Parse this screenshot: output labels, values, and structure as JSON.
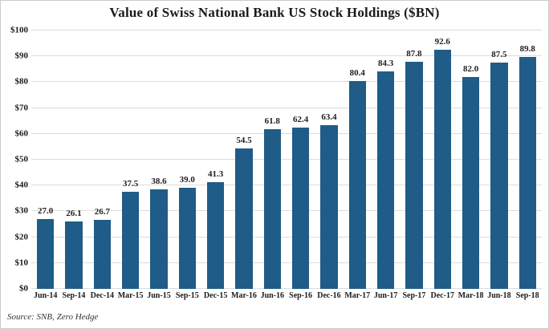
{
  "chart_data": {
    "type": "bar",
    "title": "Value of Swiss National Bank US Stock Holdings ($BN)",
    "categories": [
      "Jun-14",
      "Sep-14",
      "Dec-14",
      "Mar-15",
      "Jun-15",
      "Sep-15",
      "Dec-15",
      "Mar-16",
      "Jun-16",
      "Sep-16",
      "Dec-16",
      "Mar-17",
      "Jun-17",
      "Sep-17",
      "Dec-17",
      "Mar-18",
      "Jun-18",
      "Sep-18"
    ],
    "values": [
      27.0,
      26.1,
      26.7,
      37.5,
      38.6,
      39.0,
      41.3,
      54.5,
      61.8,
      62.4,
      63.4,
      80.4,
      84.3,
      87.8,
      92.6,
      82.0,
      87.5,
      89.8
    ],
    "xlabel": "",
    "ylabel": "",
    "ylim": [
      0,
      100
    ],
    "ytick_step": 10,
    "ytick_prefix": "$",
    "grid": true,
    "legend": "none",
    "value_labels": true,
    "bar_color": "#1F5C87"
  },
  "source_note": "Source: SNB, Zero Hedge",
  "colors": {
    "bar": "#1F5C87",
    "grid": "#dcdcdc",
    "text": "#1a1a1a",
    "background": "#ffffff",
    "border": "#cccccc"
  }
}
